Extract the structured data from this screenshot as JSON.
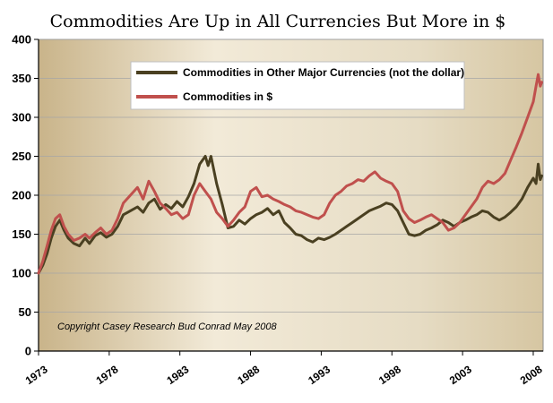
{
  "chart_data": {
    "type": "line",
    "title": "Commodities Are Up in All Currencies But More in $",
    "annotation": "Copyright Casey Research Bud Conrad  May 2008",
    "xlabel": "",
    "ylabel": "",
    "xlim": [
      1973,
      2008.7
    ],
    "ylim": [
      0,
      400
    ],
    "y_ticks": [
      0,
      50,
      100,
      150,
      200,
      250,
      300,
      350,
      400
    ],
    "x_ticks": [
      1973,
      1978,
      1983,
      1988,
      1993,
      1998,
      2003,
      2008
    ],
    "grid": true,
    "legend_position": "top-center",
    "series": [
      {
        "name": "Commodities in Other Major Currencies (not the dollar)",
        "color": "#4a4021",
        "points": [
          [
            1973.0,
            100
          ],
          [
            1973.3,
            110
          ],
          [
            1973.6,
            125
          ],
          [
            1973.9,
            145
          ],
          [
            1974.2,
            160
          ],
          [
            1974.5,
            168
          ],
          [
            1974.8,
            155
          ],
          [
            1975.1,
            145
          ],
          [
            1975.5,
            138
          ],
          [
            1975.9,
            135
          ],
          [
            1976.3,
            145
          ],
          [
            1976.6,
            138
          ],
          [
            1977.0,
            148
          ],
          [
            1977.4,
            152
          ],
          [
            1977.8,
            146
          ],
          [
            1978.2,
            150
          ],
          [
            1978.6,
            160
          ],
          [
            1979.0,
            175
          ],
          [
            1979.5,
            180
          ],
          [
            1980.0,
            185
          ],
          [
            1980.4,
            178
          ],
          [
            1980.8,
            190
          ],
          [
            1981.2,
            195
          ],
          [
            1981.6,
            182
          ],
          [
            1982.0,
            188
          ],
          [
            1982.4,
            183
          ],
          [
            1982.8,
            192
          ],
          [
            1983.2,
            185
          ],
          [
            1983.6,
            198
          ],
          [
            1984.0,
            215
          ],
          [
            1984.4,
            240
          ],
          [
            1984.8,
            250
          ],
          [
            1985.0,
            238
          ],
          [
            1985.2,
            250
          ],
          [
            1985.6,
            215
          ],
          [
            1986.0,
            188
          ],
          [
            1986.4,
            158
          ],
          [
            1986.8,
            160
          ],
          [
            1987.2,
            168
          ],
          [
            1987.6,
            163
          ],
          [
            1988.0,
            170
          ],
          [
            1988.4,
            175
          ],
          [
            1988.8,
            178
          ],
          [
            1989.2,
            183
          ],
          [
            1989.6,
            175
          ],
          [
            1990.0,
            180
          ],
          [
            1990.4,
            165
          ],
          [
            1990.8,
            158
          ],
          [
            1991.2,
            150
          ],
          [
            1991.6,
            148
          ],
          [
            1992.0,
            143
          ],
          [
            1992.4,
            140
          ],
          [
            1992.8,
            145
          ],
          [
            1993.2,
            143
          ],
          [
            1993.6,
            146
          ],
          [
            1994.0,
            150
          ],
          [
            1994.4,
            155
          ],
          [
            1994.8,
            160
          ],
          [
            1995.2,
            165
          ],
          [
            1995.6,
            170
          ],
          [
            1996.0,
            175
          ],
          [
            1996.4,
            180
          ],
          [
            1996.8,
            183
          ],
          [
            1997.2,
            186
          ],
          [
            1997.6,
            190
          ],
          [
            1998.0,
            188
          ],
          [
            1998.4,
            180
          ],
          [
            1998.8,
            165
          ],
          [
            1999.2,
            150
          ],
          [
            1999.6,
            148
          ],
          [
            2000.0,
            150
          ],
          [
            2000.4,
            155
          ],
          [
            2000.8,
            158
          ],
          [
            2001.2,
            162
          ],
          [
            2001.6,
            168
          ],
          [
            2002.0,
            165
          ],
          [
            2002.4,
            160
          ],
          [
            2002.8,
            165
          ],
          [
            2003.2,
            168
          ],
          [
            2003.6,
            172
          ],
          [
            2004.0,
            175
          ],
          [
            2004.4,
            180
          ],
          [
            2004.8,
            178
          ],
          [
            2005.2,
            172
          ],
          [
            2005.6,
            168
          ],
          [
            2006.0,
            172
          ],
          [
            2006.4,
            178
          ],
          [
            2006.8,
            185
          ],
          [
            2007.2,
            195
          ],
          [
            2007.6,
            210
          ],
          [
            2008.0,
            222
          ],
          [
            2008.2,
            215
          ],
          [
            2008.35,
            240
          ],
          [
            2008.5,
            220
          ],
          [
            2008.6,
            225
          ]
        ]
      },
      {
        "name": "Commodities in $",
        "color": "#c0504d",
        "points": [
          [
            1973.0,
            100
          ],
          [
            1973.3,
            115
          ],
          [
            1973.6,
            135
          ],
          [
            1973.9,
            155
          ],
          [
            1974.2,
            170
          ],
          [
            1974.5,
            175
          ],
          [
            1974.8,
            160
          ],
          [
            1975.1,
            150
          ],
          [
            1975.5,
            142
          ],
          [
            1975.9,
            145
          ],
          [
            1976.3,
            150
          ],
          [
            1976.6,
            145
          ],
          [
            1977.0,
            152
          ],
          [
            1977.4,
            158
          ],
          [
            1977.8,
            150
          ],
          [
            1978.2,
            155
          ],
          [
            1978.6,
            170
          ],
          [
            1979.0,
            190
          ],
          [
            1979.5,
            200
          ],
          [
            1980.0,
            210
          ],
          [
            1980.4,
            195
          ],
          [
            1980.8,
            218
          ],
          [
            1981.2,
            205
          ],
          [
            1981.6,
            190
          ],
          [
            1982.0,
            183
          ],
          [
            1982.4,
            175
          ],
          [
            1982.8,
            178
          ],
          [
            1983.2,
            170
          ],
          [
            1983.6,
            175
          ],
          [
            1984.0,
            200
          ],
          [
            1984.4,
            215
          ],
          [
            1984.8,
            205
          ],
          [
            1985.2,
            195
          ],
          [
            1985.6,
            178
          ],
          [
            1986.0,
            170
          ],
          [
            1986.4,
            160
          ],
          [
            1986.8,
            168
          ],
          [
            1987.2,
            178
          ],
          [
            1987.6,
            185
          ],
          [
            1988.0,
            205
          ],
          [
            1988.4,
            210
          ],
          [
            1988.8,
            198
          ],
          [
            1989.2,
            200
          ],
          [
            1989.6,
            195
          ],
          [
            1990.0,
            192
          ],
          [
            1990.4,
            188
          ],
          [
            1990.8,
            185
          ],
          [
            1991.2,
            180
          ],
          [
            1991.6,
            178
          ],
          [
            1992.0,
            175
          ],
          [
            1992.4,
            172
          ],
          [
            1992.8,
            170
          ],
          [
            1993.2,
            175
          ],
          [
            1993.6,
            190
          ],
          [
            1994.0,
            200
          ],
          [
            1994.4,
            205
          ],
          [
            1994.8,
            212
          ],
          [
            1995.2,
            215
          ],
          [
            1995.6,
            220
          ],
          [
            1996.0,
            218
          ],
          [
            1996.4,
            225
          ],
          [
            1996.8,
            230
          ],
          [
            1997.2,
            222
          ],
          [
            1997.6,
            218
          ],
          [
            1998.0,
            215
          ],
          [
            1998.4,
            205
          ],
          [
            1998.8,
            180
          ],
          [
            1999.2,
            170
          ],
          [
            1999.6,
            165
          ],
          [
            2000.0,
            168
          ],
          [
            2000.4,
            172
          ],
          [
            2000.8,
            175
          ],
          [
            2001.2,
            170
          ],
          [
            2001.6,
            165
          ],
          [
            2002.0,
            155
          ],
          [
            2002.4,
            158
          ],
          [
            2002.8,
            165
          ],
          [
            2003.2,
            175
          ],
          [
            2003.6,
            185
          ],
          [
            2004.0,
            195
          ],
          [
            2004.4,
            210
          ],
          [
            2004.8,
            218
          ],
          [
            2005.2,
            215
          ],
          [
            2005.6,
            220
          ],
          [
            2006.0,
            228
          ],
          [
            2006.4,
            245
          ],
          [
            2006.8,
            262
          ],
          [
            2007.2,
            280
          ],
          [
            2007.6,
            300
          ],
          [
            2008.0,
            320
          ],
          [
            2008.2,
            340
          ],
          [
            2008.35,
            355
          ],
          [
            2008.5,
            340
          ],
          [
            2008.6,
            345
          ]
        ]
      }
    ]
  }
}
